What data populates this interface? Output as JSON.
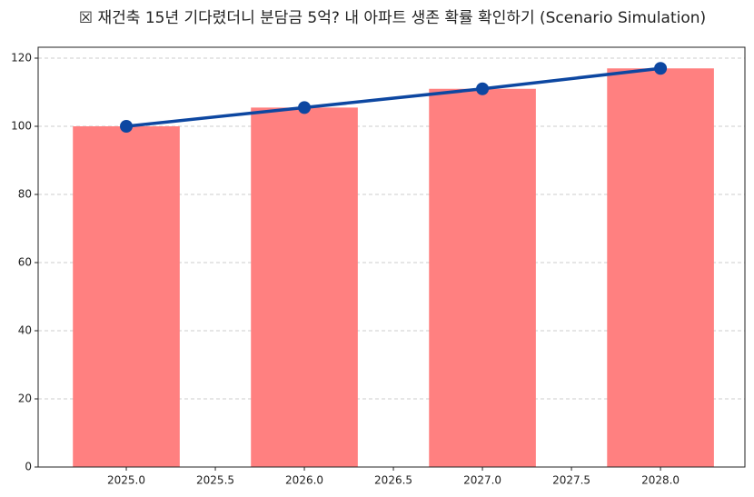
{
  "chart_data": {
    "type": "combo",
    "title": "☒ 재건축 15년 기다렸더니 분담금 5억? 내 아파트 생존 확률 확인하기 (Scenario Simulation)",
    "x": [
      2025,
      2026,
      2027,
      2028
    ],
    "series": [
      {
        "type": "bar",
        "color": "#ff8080",
        "bar_width": 0.6,
        "values": [
          100,
          105.5,
          111,
          117
        ]
      },
      {
        "type": "line",
        "color": "#0d47a1",
        "values": [
          100,
          105.5,
          111,
          117
        ]
      }
    ],
    "xlim": [
      2024.505,
      2028.474
    ],
    "xticks": [
      {
        "value": 2025,
        "label": "2025.0"
      },
      {
        "value": 2025.5,
        "label": "2025.5"
      },
      {
        "value": 2026,
        "label": "2026.0"
      },
      {
        "value": 2026.5,
        "label": "2026.5"
      },
      {
        "value": 2027,
        "label": "2027.0"
      },
      {
        "value": 2027.5,
        "label": "2027.5"
      },
      {
        "value": 2028,
        "label": "2028.0"
      }
    ],
    "ylim": [
      0,
      123.2
    ],
    "yticks": [
      0,
      20,
      40,
      60,
      80,
      100,
      120
    ],
    "grid": true
  }
}
